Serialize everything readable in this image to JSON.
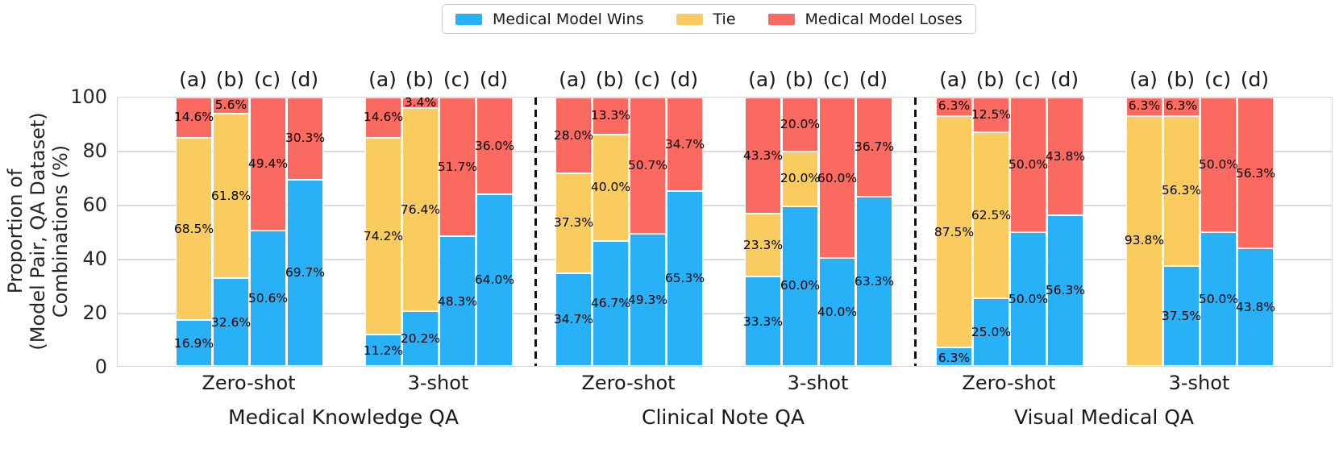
{
  "chart_data": {
    "type": "bar",
    "stacked": true,
    "orientation": "vertical",
    "grid": "horizontal",
    "legend_position": "top-center",
    "ylabel_lines": [
      "Proportion of",
      "(Model Pair, QA Dataset)",
      "Combinations (%)"
    ],
    "ylim": [
      0,
      100
    ],
    "yticks": [
      0,
      20,
      40,
      60,
      80,
      100
    ],
    "value_label_suffix": "%",
    "colors": {
      "wins": "#29B1F8",
      "tie": "#FACC60",
      "loses": "#FA6A60",
      "grid": "#DCDCDC",
      "divider": "#111111",
      "text": "#262626"
    },
    "legend": [
      {
        "key": "wins",
        "label": "Medical Model Wins",
        "color": "#29B1F8"
      },
      {
        "key": "tie",
        "label": "Tie",
        "color": "#FACC60"
      },
      {
        "key": "loses",
        "label": "Medical Model Loses",
        "color": "#FA6A60"
      }
    ],
    "bar_column_labels": [
      "(a)",
      "(b)",
      "(c)",
      "(d)"
    ],
    "sections": [
      {
        "dataset": "Medical Knowledge QA",
        "groups": [
          {
            "shot": "Zero-shot",
            "bars": [
              {
                "label": "(a)",
                "wins": 16.9,
                "tie": 68.5,
                "loses": 14.6
              },
              {
                "label": "(b)",
                "wins": 32.6,
                "tie": 61.8,
                "loses": 5.6
              },
              {
                "label": "(c)",
                "wins": 50.6,
                "tie": 0,
                "loses": 49.4
              },
              {
                "label": "(d)",
                "wins": 69.7,
                "tie": 0,
                "loses": 30.3
              }
            ]
          },
          {
            "shot": "3-shot",
            "bars": [
              {
                "label": "(a)",
                "wins": 11.2,
                "tie": 74.2,
                "loses": 14.6
              },
              {
                "label": "(b)",
                "wins": 20.2,
                "tie": 76.4,
                "loses": 3.4
              },
              {
                "label": "(c)",
                "wins": 48.3,
                "tie": 0,
                "loses": 51.7
              },
              {
                "label": "(d)",
                "wins": 64.0,
                "tie": 0,
                "loses": 36.0
              }
            ]
          }
        ]
      },
      {
        "dataset": "Clinical Note QA",
        "groups": [
          {
            "shot": "Zero-shot",
            "bars": [
              {
                "label": "(a)",
                "wins": 34.7,
                "tie": 37.3,
                "loses": 28.0
              },
              {
                "label": "(b)",
                "wins": 46.7,
                "tie": 40.0,
                "loses": 13.3
              },
              {
                "label": "(c)",
                "wins": 49.3,
                "tie": 0,
                "loses": 50.7
              },
              {
                "label": "(d)",
                "wins": 65.3,
                "tie": 0,
                "loses": 34.7
              }
            ]
          },
          {
            "shot": "3-shot",
            "bars": [
              {
                "label": "(a)",
                "wins": 33.3,
                "tie": 23.3,
                "loses": 43.3
              },
              {
                "label": "(b)",
                "wins": 60.0,
                "tie": 20.0,
                "loses": 20.0
              },
              {
                "label": "(c)",
                "wins": 40.0,
                "tie": 0,
                "loses": 60.0
              },
              {
                "label": "(d)",
                "wins": 63.3,
                "tie": 0,
                "loses": 36.7
              }
            ]
          }
        ]
      },
      {
        "dataset": "Visual Medical QA",
        "groups": [
          {
            "shot": "Zero-shot",
            "bars": [
              {
                "label": "(a)",
                "wins": 6.3,
                "tie": 87.5,
                "loses": 6.3
              },
              {
                "label": "(b)",
                "wins": 25.0,
                "tie": 62.5,
                "loses": 12.5
              },
              {
                "label": "(c)",
                "wins": 50.0,
                "tie": 0,
                "loses": 50.0
              },
              {
                "label": "(d)",
                "wins": 56.3,
                "tie": 0,
                "loses": 43.8
              }
            ]
          },
          {
            "shot": "3-shot",
            "bars": [
              {
                "label": "(a)",
                "wins": 0,
                "tie": 93.8,
                "loses": 6.3
              },
              {
                "label": "(b)",
                "wins": 37.5,
                "tie": 56.3,
                "loses": 6.3
              },
              {
                "label": "(c)",
                "wins": 50.0,
                "tie": 0,
                "loses": 50.0
              },
              {
                "label": "(d)",
                "wins": 43.8,
                "tie": 0,
                "loses": 56.3
              }
            ]
          }
        ]
      }
    ]
  }
}
